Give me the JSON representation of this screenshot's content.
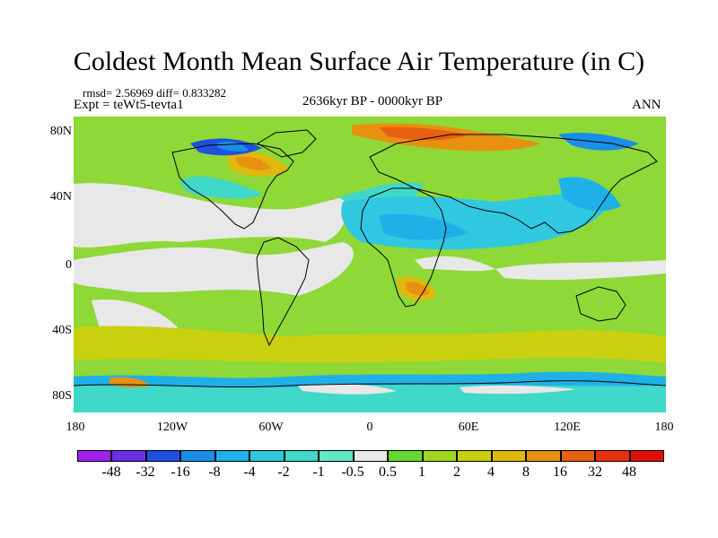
{
  "title": "Coldest Month Mean Surface Air Temperature (in C)",
  "stats": "rmsd= 2.56969 diff= 0.833282",
  "experiment": "Expt = teWt5-tevta1",
  "period": "2636kyr BP - 0000kyr BP",
  "season": "ANN",
  "y_ticks": [
    "80N",
    "40N",
    "0",
    "40S",
    "80S"
  ],
  "x_ticks": [
    "180",
    "120W",
    "60W",
    "0",
    "60E",
    "120E",
    "180"
  ],
  "legend": {
    "labels": [
      "-48",
      "-32",
      "-16",
      "-8",
      "-4",
      "-2",
      "-1",
      "-0.5",
      "0.5",
      "1",
      "2",
      "4",
      "8",
      "16",
      "32",
      "48"
    ],
    "colors": [
      "#a020f0",
      "#6a30e8",
      "#2050e0",
      "#1a8ee8",
      "#20b0e8",
      "#30c8e0",
      "#40d8c8",
      "#60e8c0",
      "#e8e8e8",
      "#66d830",
      "#a0d820",
      "#c8d010",
      "#e0b810",
      "#e89010",
      "#e86010",
      "#e83010",
      "#e01000"
    ]
  }
}
